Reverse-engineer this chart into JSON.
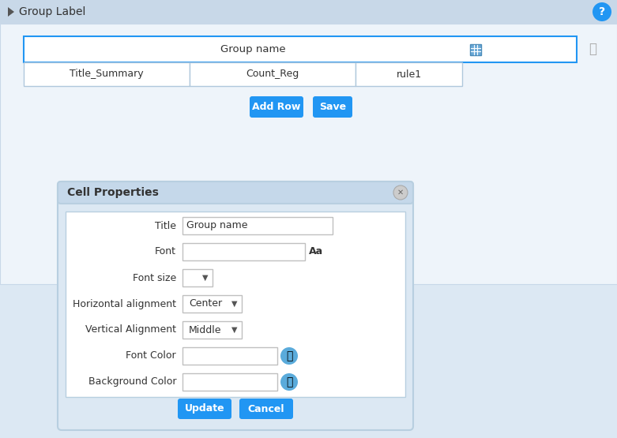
{
  "bg_color": "#dce8f3",
  "header_bg": "#c8d8e8",
  "header_text": "Group Label",
  "header_text_color": "#333333",
  "question_circle_color": "#2196F3",
  "group_name_text": "Group name",
  "row1_cols": [
    "Title_Summary",
    "Count_Reg",
    "rule1"
  ],
  "button_add_row": "Add Row",
  "button_save": "Save",
  "button_color": "#2196F3",
  "button_text_color": "#ffffff",
  "dialog_bg": "#dce8f3",
  "dialog_inner_bg": "#ffffff",
  "dialog_title": "Cell Properties",
  "dialog_title_color": "#333333",
  "dialog_border": "#b8cfe0",
  "dialog_title_bg": "#c5d8ea",
  "form_fields": [
    "Title",
    "Font",
    "Font size",
    "Horizontal alignment",
    "Vertical Alignment",
    "Font Color",
    "Background Color"
  ],
  "field_values": [
    "Group name",
    "",
    "",
    "Center",
    "Middle",
    "",
    ""
  ],
  "input_bg": "#ffffff",
  "input_border": "#c0c0c0",
  "update_button": "Update",
  "cancel_button": "Cancel",
  "selected_cell_color": "#2196F3",
  "trash_icon_color": "#aaaaaa",
  "panel_bg": "#eef4fa",
  "panel_border": "#c8d8e8",
  "handle_color": "#6baad8",
  "handle_border": "#4a8ab8",
  "palette_color": "#5aabdb"
}
